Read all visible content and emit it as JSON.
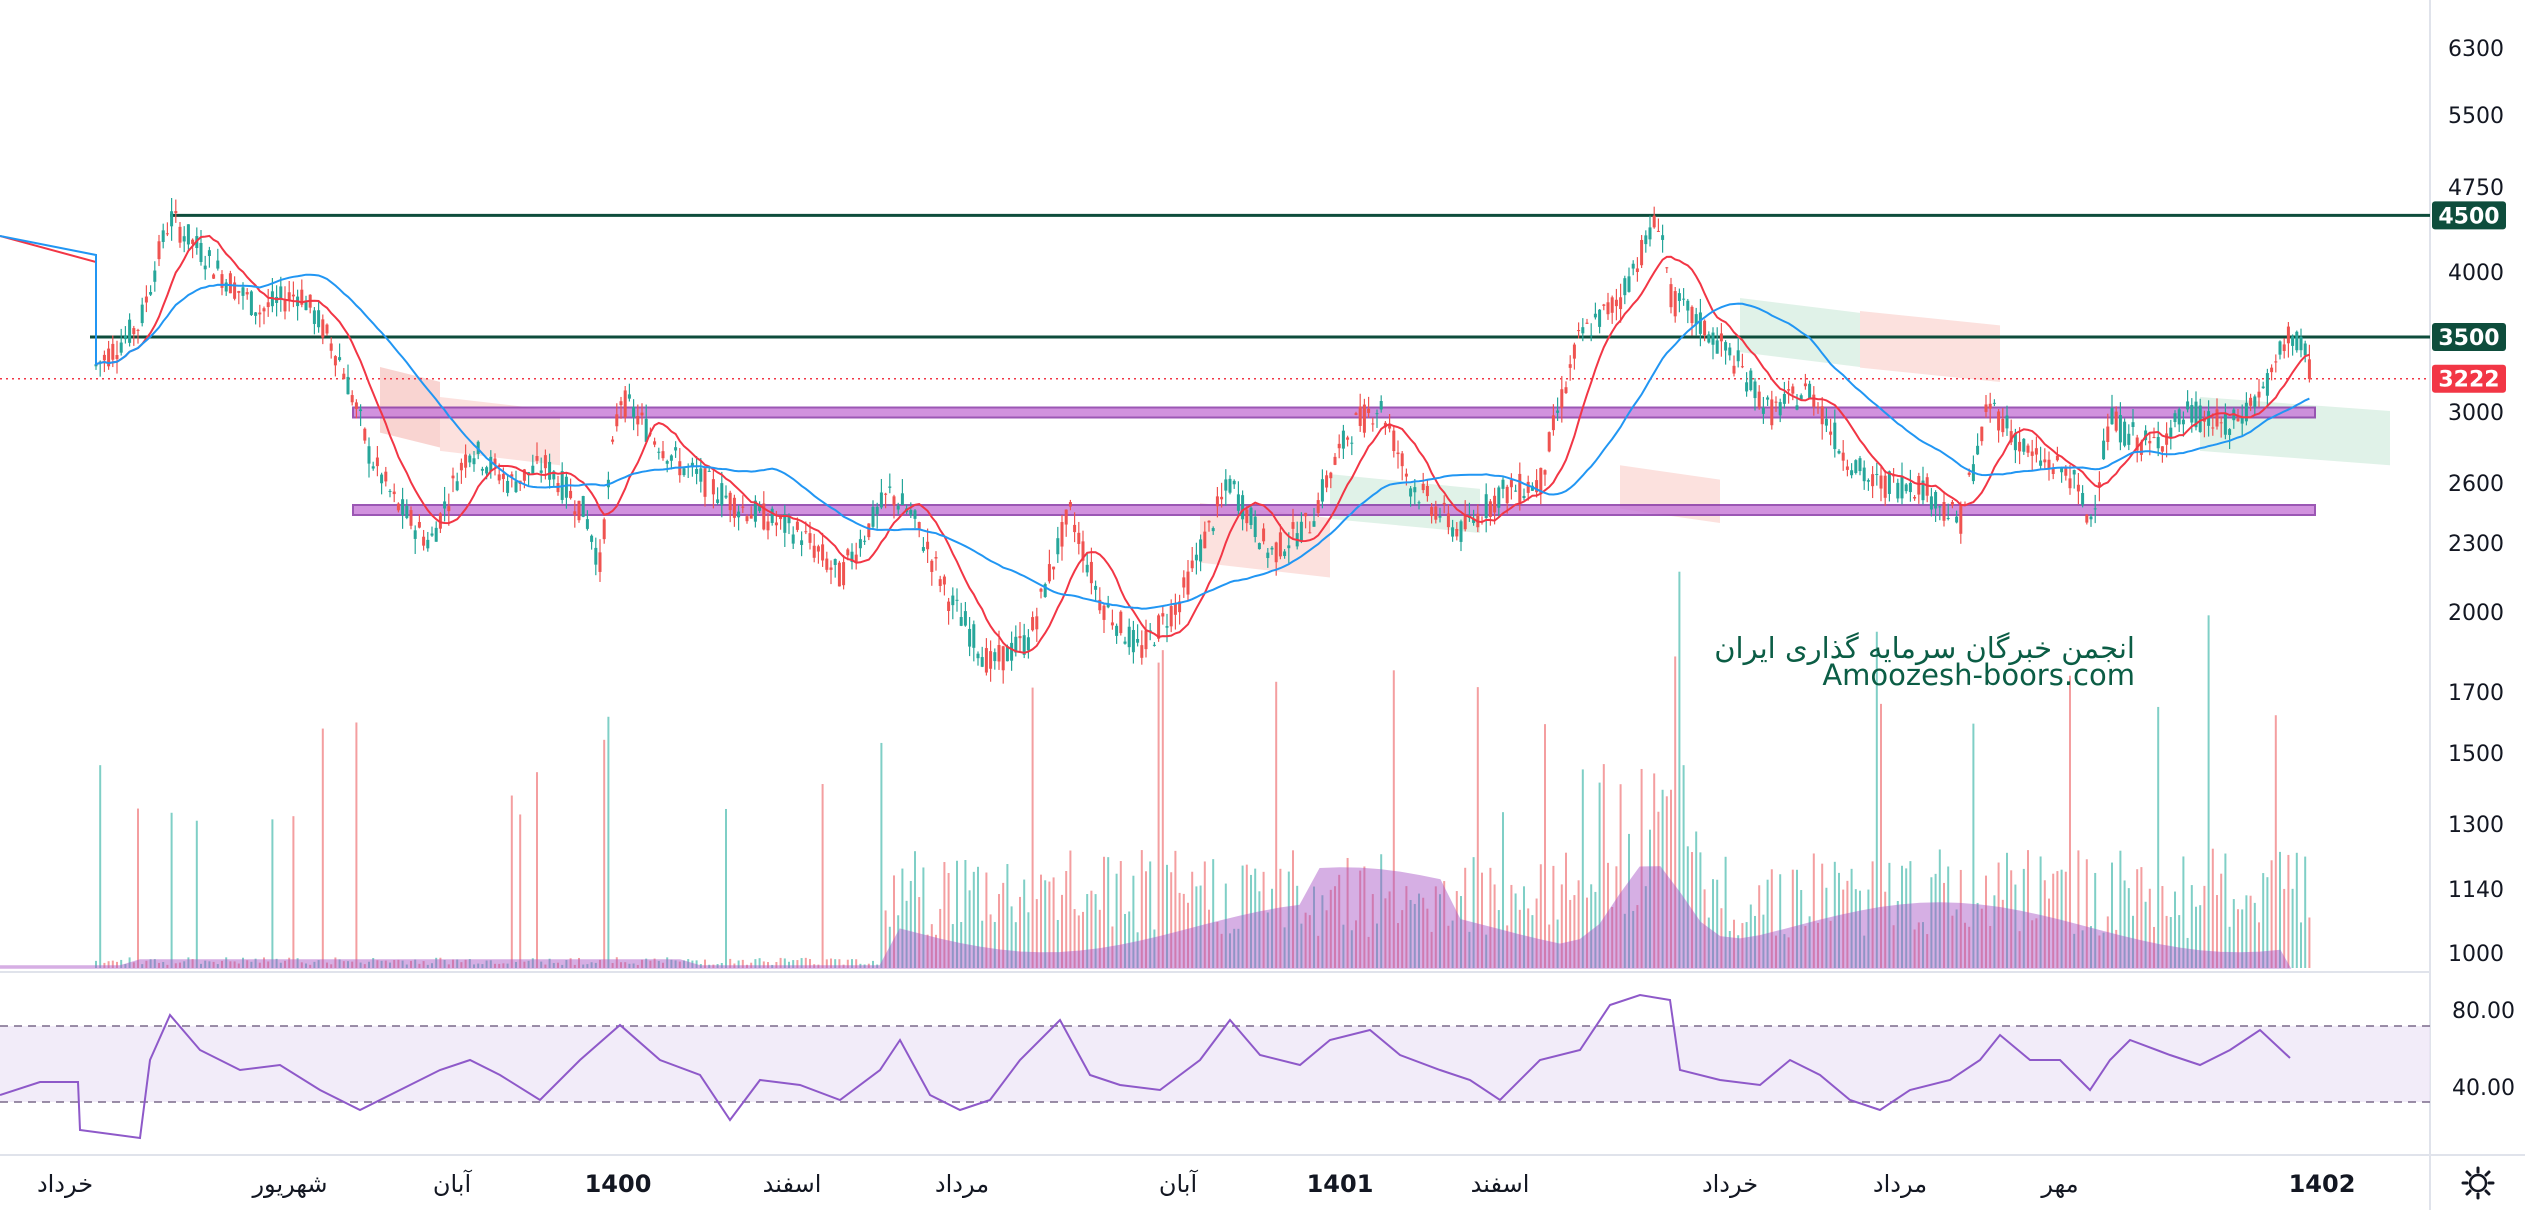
{
  "chart_data": {
    "type": "candlestick",
    "price_axis": {
      "ticks": [
        "6300",
        "5500",
        "4750",
        "4000",
        "3500",
        "3000",
        "2600",
        "2300",
        "2000",
        "1700",
        "1500",
        "1300",
        "1140",
        "1000"
      ],
      "scale": "log"
    },
    "time_axis": {
      "ticks": [
        {
          "label": "خرداد",
          "bold": false
        },
        {
          "label": "شهریور",
          "bold": false
        },
        {
          "label": "آبان",
          "bold": false
        },
        {
          "label": "1400",
          "bold": true
        },
        {
          "label": "اسفند",
          "bold": false
        },
        {
          "label": "مرداد",
          "bold": false
        },
        {
          "label": "آبان",
          "bold": false
        },
        {
          "label": "1401",
          "bold": true
        },
        {
          "label": "اسفند",
          "bold": false
        },
        {
          "label": "خرداد",
          "bold": false
        },
        {
          "label": "مرداد",
          "bold": false
        },
        {
          "label": "مهر",
          "bold": false
        },
        {
          "label": "1402",
          "bold": true
        }
      ]
    },
    "horizontal_levels": [
      {
        "label": "4500",
        "value": 4500,
        "color": "#0e4d3c"
      },
      {
        "label": "3500",
        "value": 3500,
        "color": "#0e4d3c"
      }
    ],
    "support_zones": [
      {
        "low": 2970,
        "high": 3030,
        "color": "#c97fd9"
      },
      {
        "low": 2440,
        "high": 2490,
        "color": "#c97fd9"
      }
    ],
    "last_price": {
      "label": "3222",
      "value": 3222,
      "color": "#f23645"
    },
    "rsi": {
      "ticks": [
        "80.00",
        "40.00"
      ],
      "upper": 70,
      "lower": 30
    },
    "colors": {
      "up": "#26a69a",
      "down": "#ef5350",
      "ma_fast": "#f23645",
      "ma_slow": "#2196f3",
      "volume_ma": "#a64fc4",
      "rsi_line": "#8e59c9"
    },
    "watermark": {
      "line1": "انجمن خبرگان سرمایه گذاری ایران",
      "line2": "Amoozesh-boors.com"
    }
  },
  "settings_icon": "gear-icon"
}
